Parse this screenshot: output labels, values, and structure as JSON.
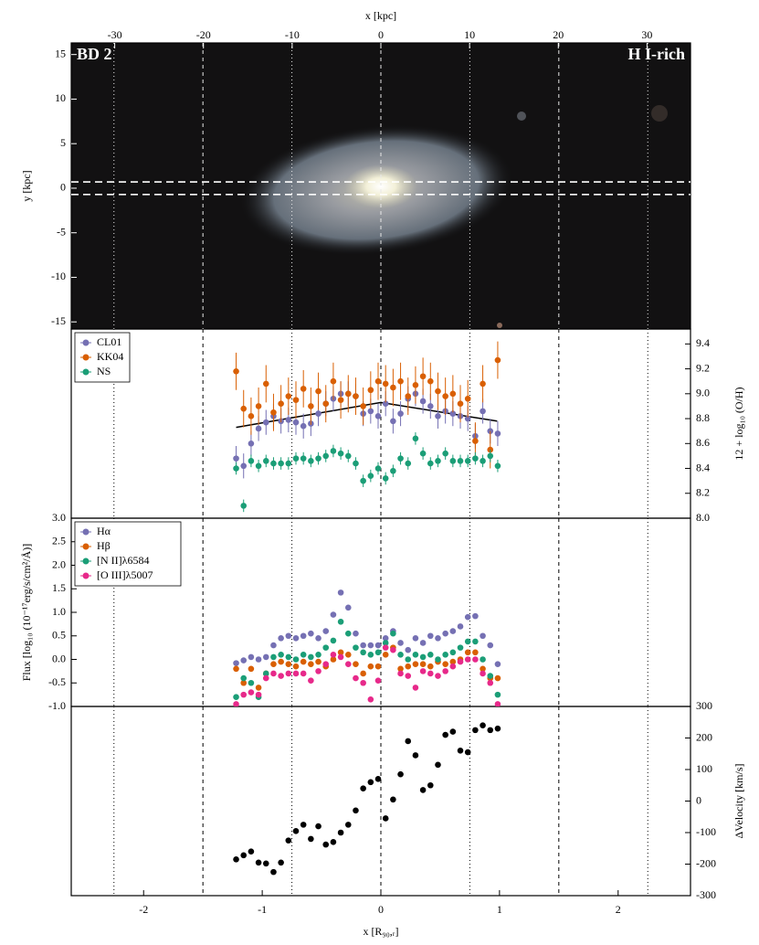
{
  "chart_data": [
    {
      "type": "image",
      "xlabel": "x [kpc]",
      "xlim": [
        -34.9,
        34.9
      ],
      "xticks": [
        -30,
        -20,
        -10,
        0,
        10,
        20,
        30
      ],
      "ylabel": "y [kpc]",
      "ylim": [
        -15.8,
        16.3
      ],
      "yticks": [
        -15,
        -10,
        -5,
        0,
        5,
        10,
        15
      ],
      "labels": [
        "BD 2",
        "H I-rich"
      ],
      "slit": [
        -0.7,
        0.7
      ]
    },
    {
      "type": "scatter",
      "ylabel": "12 + log₁₀ (O/H)",
      "yaxis": "right",
      "legend": "upper left",
      "ylim": [
        8.0,
        9.52
      ],
      "yticks": [
        {
          "value": 8,
          "label": "8.0"
        },
        8.2,
        8.4,
        8.6,
        8.8,
        {
          "value": 9,
          "label": "9.0"
        },
        9.2,
        9.4
      ],
      "x": [
        -1.22,
        -1.157,
        -1.094,
        -1.031,
        -0.968,
        -0.905,
        -0.842,
        -0.779,
        -0.716,
        -0.653,
        -0.59,
        -0.527,
        -0.464,
        -0.401,
        -0.338,
        -0.275,
        -0.212,
        -0.149,
        -0.086,
        -0.023,
        0.04,
        0.103,
        0.166,
        0.229,
        0.292,
        0.355,
        0.418,
        0.481,
        0.544,
        0.607,
        0.67,
        0.733,
        0.796,
        0.859,
        0.922,
        0.985
      ],
      "series": [
        {
          "name": "CL01",
          "color": "#7570b3",
          "error": 0.1,
          "values": [
            8.48,
            8.42,
            8.6,
            8.72,
            8.77,
            8.82,
            8.78,
            8.79,
            8.77,
            8.74,
            8.76,
            8.84,
            8.92,
            8.96,
            9.0,
            9.0,
            8.98,
            8.84,
            8.86,
            8.82,
            8.92,
            8.78,
            8.84,
            8.96,
            9.0,
            8.94,
            8.9,
            8.82,
            8.86,
            8.84,
            8.82,
            8.8,
            8.66,
            8.86,
            8.7,
            8.68
          ]
        },
        {
          "name": "KK04",
          "color": "#d95f02",
          "error": 0.15,
          "values": [
            9.18,
            8.88,
            8.82,
            8.9,
            9.08,
            8.85,
            8.92,
            8.98,
            8.95,
            9.04,
            8.9,
            9.02,
            8.92,
            9.1,
            8.95,
            9.0,
            8.98,
            8.9,
            9.03,
            9.1,
            9.08,
            9.05,
            9.1,
            8.98,
            9.07,
            9.14,
            9.1,
            9.02,
            8.98,
            9.0,
            8.92,
            8.96,
            8.62,
            9.08,
            8.55,
            9.27
          ]
        },
        {
          "name": "NS",
          "color": "#1b9e77",
          "error": 0.05,
          "values": [
            8.4,
            8.1,
            8.46,
            8.42,
            8.46,
            8.44,
            8.44,
            8.44,
            8.48,
            8.48,
            8.46,
            8.48,
            8.5,
            8.54,
            8.52,
            8.5,
            8.44,
            8.3,
            8.34,
            8.4,
            8.32,
            8.38,
            8.48,
            8.44,
            8.64,
            8.52,
            8.44,
            8.46,
            8.52,
            8.46,
            8.46,
            8.46,
            8.48,
            8.46,
            8.5,
            8.42
          ]
        }
      ],
      "fit": {
        "color": "#000000",
        "x": [
          -1.22,
          0,
          0.98
        ],
        "values": [
          8.73,
          8.93,
          8.78
        ]
      }
    },
    {
      "type": "scatter",
      "ylabel": "Flux [log₁₀ (10⁻¹⁷erg/s/cm²/Å)]",
      "yaxis": "left",
      "legend": "upper left",
      "ylim": [
        -1.0,
        3.0
      ],
      "yticks": [
        {
          "value": -1,
          "label": "-1.0"
        },
        -0.5,
        {
          "value": 0,
          "label": "0.0"
        },
        0.5,
        {
          "value": 1,
          "label": "1.0"
        },
        1.5,
        {
          "value": 2,
          "label": "2.0"
        },
        2.5,
        {
          "value": 3,
          "label": "3.0"
        }
      ],
      "x": [
        -1.22,
        -1.157,
        -1.094,
        -1.031,
        -0.968,
        -0.905,
        -0.842,
        -0.779,
        -0.716,
        -0.653,
        -0.59,
        -0.527,
        -0.464,
        -0.401,
        -0.338,
        -0.275,
        -0.212,
        -0.149,
        -0.086,
        -0.023,
        0.04,
        0.103,
        0.166,
        0.229,
        0.292,
        0.355,
        0.418,
        0.481,
        0.544,
        0.607,
        0.67,
        0.733,
        0.796,
        0.859,
        0.922,
        0.985
      ],
      "series": [
        {
          "name": "Hα",
          "color": "#7570b3",
          "values": [
            -0.08,
            -0.02,
            0.05,
            0.0,
            0.05,
            0.3,
            0.45,
            0.5,
            0.45,
            0.5,
            0.55,
            0.45,
            0.6,
            0.95,
            1.42,
            1.1,
            0.55,
            0.3,
            0.3,
            0.3,
            0.45,
            0.6,
            0.35,
            0.2,
            0.45,
            0.35,
            0.5,
            0.45,
            0.55,
            0.6,
            0.7,
            0.9,
            0.92,
            0.5,
            0.3,
            -0.1
          ]
        },
        {
          "name": "Hβ",
          "color": "#d95f02",
          "values": [
            -0.2,
            -0.5,
            -0.2,
            -0.6,
            -0.3,
            -0.1,
            -0.05,
            -0.1,
            -0.15,
            -0.05,
            -0.1,
            -0.05,
            -0.15,
            0.0,
            0.15,
            0.1,
            -0.1,
            -0.3,
            -0.15,
            -0.15,
            0.1,
            0.25,
            -0.2,
            -0.15,
            -0.1,
            -0.1,
            -0.15,
            -0.05,
            -0.1,
            -0.05,
            0.0,
            0.15,
            0.15,
            -0.2,
            -0.4,
            -0.4
          ]
        },
        {
          "name": "[N II]λ6584",
          "color": "#1b9e77",
          "values": [
            -0.8,
            -0.4,
            -0.5,
            -0.8,
            -0.3,
            0.05,
            0.1,
            0.05,
            0.0,
            0.1,
            0.05,
            0.1,
            0.25,
            0.4,
            0.8,
            0.55,
            0.25,
            0.15,
            0.1,
            0.15,
            0.35,
            0.55,
            0.1,
            0.0,
            0.1,
            0.05,
            0.1,
            0.0,
            0.1,
            0.15,
            0.25,
            0.38,
            0.38,
            0.0,
            -0.35,
            -0.75
          ]
        },
        {
          "name": "[O III]λ5007",
          "color": "#e7298a",
          "values": [
            -0.95,
            -0.75,
            -0.7,
            -0.75,
            -0.4,
            -0.3,
            -0.35,
            -0.3,
            -0.3,
            -0.3,
            -0.45,
            -0.25,
            -0.1,
            0.1,
            0.05,
            -0.1,
            -0.4,
            -0.5,
            -0.85,
            -0.45,
            0.25,
            0.2,
            -0.3,
            -0.35,
            -0.6,
            -0.25,
            -0.3,
            -0.35,
            -0.25,
            -0.15,
            -0.05,
            0.0,
            0.0,
            -0.3,
            -0.5,
            -0.95
          ]
        }
      ]
    },
    {
      "type": "scatter",
      "ylabel": "ΔVelocity [km/s]",
      "yaxis": "right",
      "color": "#000000",
      "ylim": [
        -300,
        300
      ],
      "yticks": [
        -300,
        -200,
        -100,
        0,
        100,
        200,
        300
      ],
      "x": [
        -1.22,
        -1.157,
        -1.094,
        -1.031,
        -0.968,
        -0.905,
        -0.842,
        -0.779,
        -0.716,
        -0.653,
        -0.59,
        -0.527,
        -0.464,
        -0.401,
        -0.338,
        -0.275,
        -0.212,
        -0.149,
        -0.086,
        -0.023,
        0.04,
        0.103,
        0.166,
        0.229,
        0.292,
        0.355,
        0.418,
        0.481,
        0.544,
        0.607,
        0.67,
        0.733,
        0.796,
        0.859,
        0.922,
        0.985
      ],
      "values": [
        -185,
        -172,
        -160,
        -195,
        -198,
        -225,
        -195,
        -125,
        -95,
        -75,
        -120,
        -80,
        -138,
        -130,
        -100,
        -75,
        -30,
        40,
        60,
        70,
        -55,
        5,
        85,
        190,
        145,
        35,
        50,
        115,
        210,
        220,
        160,
        155,
        225,
        240,
        225,
        230
      ],
      "xlabel": "x [R₉₀,ᵣ]",
      "xlim": [
        -2.61,
        2.61
      ],
      "xticks": [
        -2,
        -1,
        0,
        1,
        2
      ],
      "reference_lines": {
        "values": [
          -2.25,
          -1.5,
          -0.75,
          0,
          0.75,
          1.5,
          2.25
        ],
        "styles": [
          "dotted",
          "dashed",
          "dotted",
          "dashed",
          "dotted",
          "dashed",
          "dotted"
        ]
      }
    }
  ]
}
